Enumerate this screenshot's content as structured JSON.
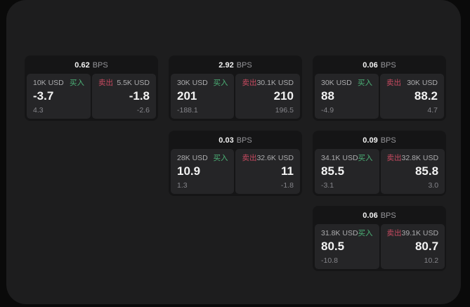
{
  "colors": {
    "panel_bg": "#1d1d1e",
    "card_bg": "#151516",
    "tile_bg": "#252527",
    "buy_green": "#4cb277",
    "sell_red": "#c84a60",
    "value_white": "#f2f2f2",
    "label_grey": "#acacae",
    "sub_grey": "#85858a",
    "bps_grey": "#96969a"
  },
  "labels": {
    "bps": "BPS",
    "buy": "买入",
    "sell": "卖出"
  },
  "cards": [
    {
      "bps": "0.62",
      "buy": {
        "notional": "10K USD",
        "value": "-3.7",
        "sub": "4.3"
      },
      "sell": {
        "notional": "5.5K USD",
        "value": "-1.8",
        "sub": "-2.6"
      }
    },
    {
      "bps": "2.92",
      "buy": {
        "notional": "30K USD",
        "value": "201",
        "sub": "-188.1"
      },
      "sell": {
        "notional": "30.1K USD",
        "value": "210",
        "sub": "196.5"
      }
    },
    {
      "bps": "0.06",
      "buy": {
        "notional": "30K USD",
        "value": "88",
        "sub": "-4.9"
      },
      "sell": {
        "notional": "30K USD",
        "value": "88.2",
        "sub": "4.7"
      }
    },
    {
      "bps": "0.03",
      "buy": {
        "notional": "28K USD",
        "value": "10.9",
        "sub": "1.3"
      },
      "sell": {
        "notional": "32.6K USD",
        "value": "11",
        "sub": "-1.8"
      }
    },
    {
      "bps": "0.09",
      "buy": {
        "notional": "34.1K USD",
        "value": "85.5",
        "sub": "-3.1"
      },
      "sell": {
        "notional": "32.8K USD",
        "value": "85.8",
        "sub": "3.0"
      }
    },
    {
      "bps": "0.06",
      "buy": {
        "notional": "31.8K USD",
        "value": "80.5",
        "sub": "-10.8"
      },
      "sell": {
        "notional": "39.1K USD",
        "value": "80.7",
        "sub": "10.2"
      }
    }
  ]
}
